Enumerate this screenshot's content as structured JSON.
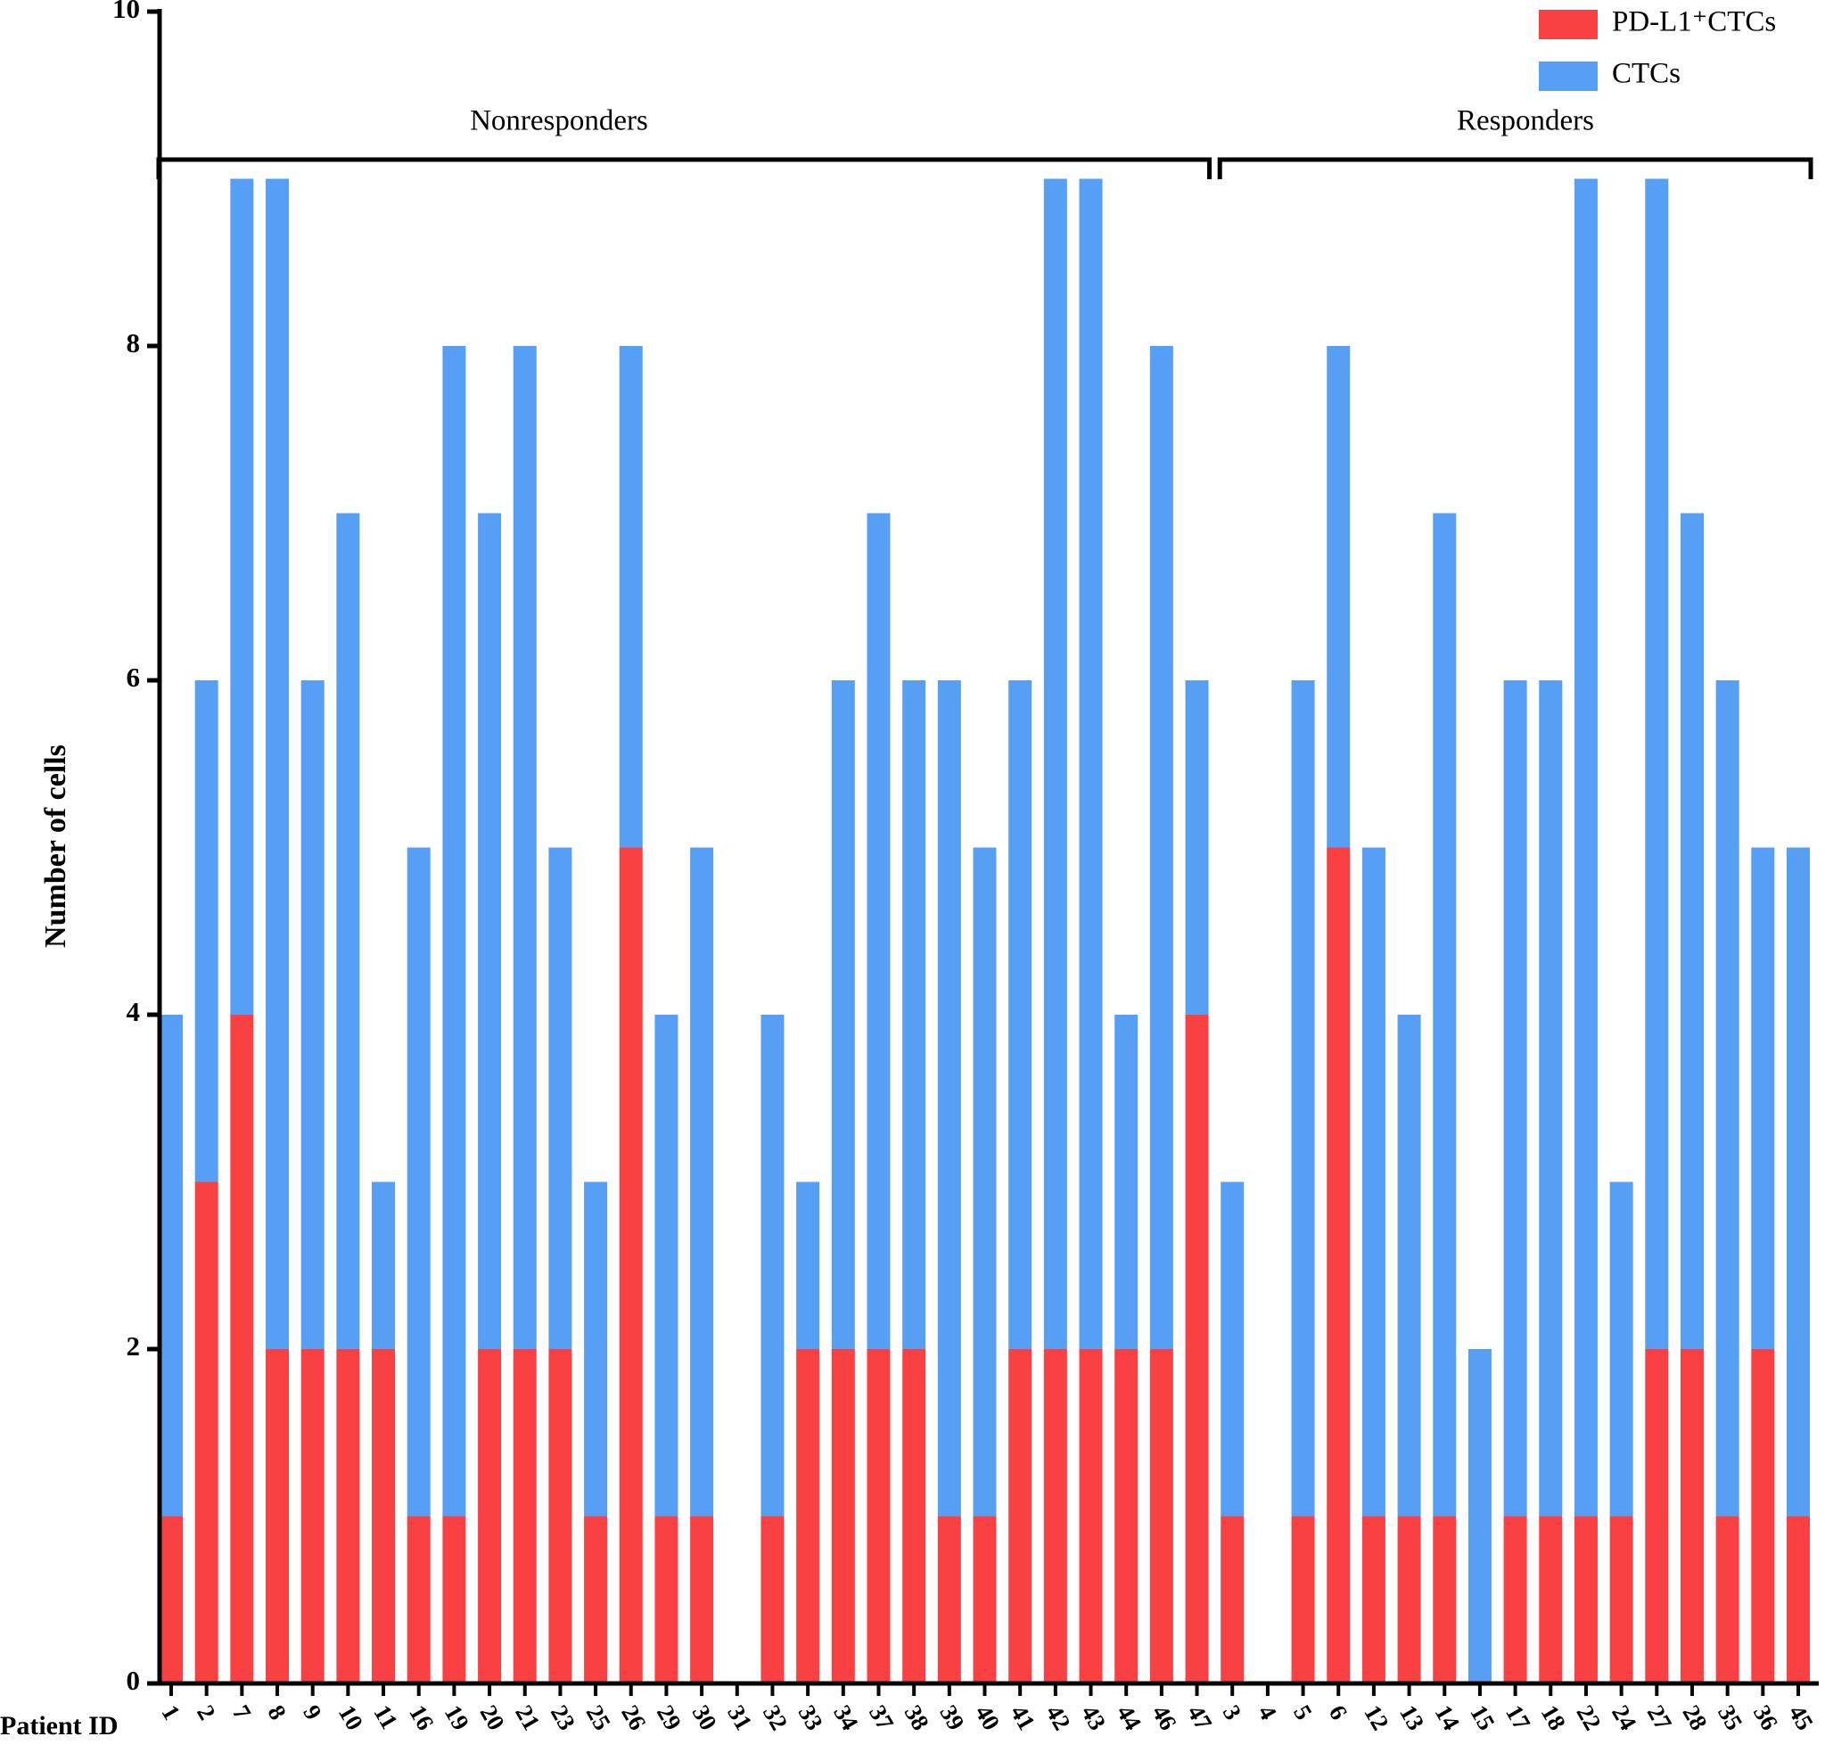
{
  "chart_data": {
    "type": "stacked_bar",
    "y_label": "Number of cells",
    "x_label": "Patient ID",
    "annotations": [
      "Nonresponders",
      "Responders"
    ],
    "categories": [
      "1",
      "2",
      "7",
      "8",
      "9",
      "10",
      "11",
      "16",
      "19",
      "20",
      "21",
      "23",
      "25",
      "26",
      "29",
      "30",
      "31",
      "32",
      "33",
      "34",
      "37",
      "38",
      "39",
      "40",
      "41",
      "42",
      "43",
      "44",
      "46",
      "47",
      "3",
      "4",
      "5",
      "6",
      "12",
      "13",
      "14",
      "15",
      "17",
      "18",
      "22",
      "24",
      "27",
      "28",
      "35",
      "36",
      "45"
    ],
    "series": [
      {
        "name": "PD-L1⁺CTCs",
        "color": "#f94144",
        "values": [
          1,
          3,
          4,
          2,
          2,
          2,
          2,
          1,
          1,
          2,
          2,
          2,
          1,
          5,
          1,
          1,
          0,
          1,
          2,
          2,
          2,
          2,
          1,
          1,
          2,
          2,
          2,
          2,
          2,
          4,
          1,
          0,
          1,
          5,
          1,
          1,
          1,
          0,
          1,
          1,
          1,
          1,
          2,
          2,
          1,
          2,
          1
        ]
      },
      {
        "name": "CTCs",
        "color": "#579ff5",
        "values": [
          3,
          3,
          5,
          7,
          4,
          5,
          1,
          4,
          7,
          5,
          6,
          3,
          2,
          3,
          3,
          4,
          0,
          3,
          1,
          4,
          5,
          4,
          5,
          4,
          4,
          7,
          7,
          2,
          6,
          2,
          2,
          0,
          5,
          3,
          4,
          3,
          6,
          2,
          5,
          5,
          8,
          2,
          7,
          5,
          5,
          3,
          4
        ]
      }
    ],
    "ylim": [
      0,
      10
    ],
    "yticks": [
      0,
      2,
      4,
      6,
      8,
      10
    ]
  }
}
